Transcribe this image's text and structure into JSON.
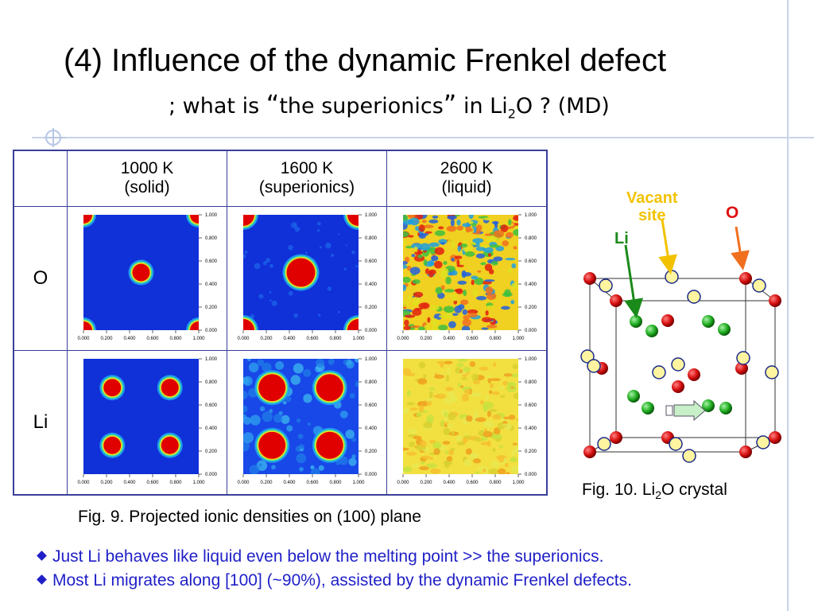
{
  "slide": {
    "title": "(4) Influence of the dynamic Frenkel defect",
    "subtitle_parts": {
      "a": "; what is ",
      "q1": "“",
      "b": "the superionics",
      "q2": "”",
      "c": " in Li",
      "sub": "2",
      "d": "O ? (MD)"
    }
  },
  "table": {
    "headers": [
      {
        "temp": "1000 K",
        "state": "(solid)"
      },
      {
        "temp": "1600 K",
        "state": "(superionics)"
      },
      {
        "temp": "2600 K",
        "state": "(liquid)"
      }
    ],
    "row_labels": [
      "O",
      "Li"
    ],
    "axis_ticks": [
      "0.000",
      "0.200",
      "0.400",
      "0.600",
      "0.800",
      "1.000"
    ]
  },
  "fig9_caption": "Fig. 9.   Projected ionic densities on (100) plane",
  "fig10_caption": {
    "a": "Fig. 10.   Li",
    "sub": "2",
    "b": "O crystal"
  },
  "crystal_labels": {
    "vacant_line1": "Vacant",
    "vacant_line2": "site",
    "o": "O",
    "li": "Li"
  },
  "bullets": [
    "Just Li behaves like liquid even below the melting point  >> the superionics.",
    "Most Li migrates along [100] (~90%), assisted by the dynamic Frenkel defects."
  ],
  "colors": {
    "title": "#000000",
    "bullet": "#1f1fc8",
    "table_border": "#3a3f9a",
    "density_bg": "#1030d8",
    "density_peak": "#e00000",
    "o_atom": "#d81010",
    "li_atom": "#22b022",
    "vacancy": "#fff5a0"
  }
}
